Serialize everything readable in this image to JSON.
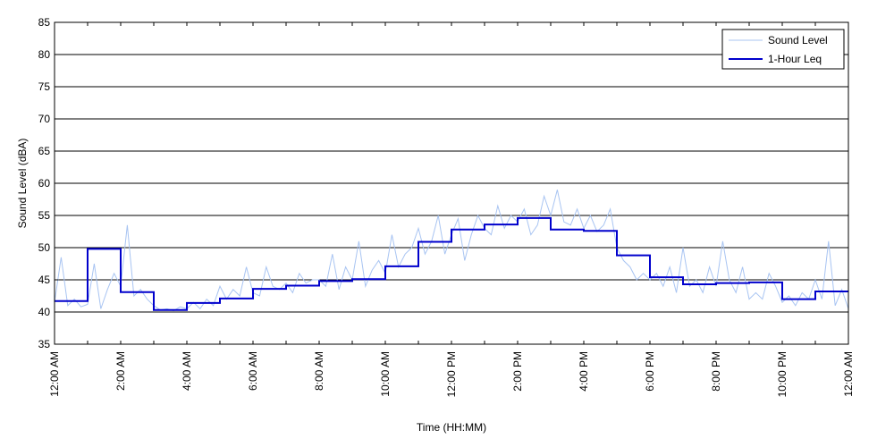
{
  "chart_data": {
    "type": "line",
    "title": "",
    "xlabel": "Time (HH:MM)",
    "ylabel": "Sound Level (dBA)",
    "xlim": [
      0,
      24
    ],
    "ylim": [
      35,
      85
    ],
    "grid": "horizontal",
    "legend_position": "top-right",
    "x_tick_labels": [
      "12:00 AM",
      "2:00 AM",
      "4:00 AM",
      "6:00 AM",
      "8:00 AM",
      "10:00 AM",
      "12:00 PM",
      "2:00 PM",
      "4:00 PM",
      "6:00 PM",
      "8:00 PM",
      "10:00 PM",
      "12:00 AM"
    ],
    "x_tick_hours": [
      0,
      2,
      4,
      6,
      8,
      10,
      12,
      14,
      16,
      18,
      20,
      22,
      24
    ],
    "y_ticks": [
      35,
      40,
      45,
      50,
      55,
      60,
      65,
      70,
      75,
      80,
      85
    ],
    "series": [
      {
        "name": "Sound Level",
        "color": "#a8c4f2",
        "style": "thin-line",
        "x": [
          0,
          0.2,
          0.4,
          0.6,
          0.8,
          1,
          1.2,
          1.4,
          1.6,
          1.8,
          2,
          2.2,
          2.4,
          2.6,
          2.8,
          3,
          3.2,
          3.4,
          3.6,
          3.8,
          4,
          4.2,
          4.4,
          4.6,
          4.8,
          5,
          5.2,
          5.4,
          5.6,
          5.8,
          6,
          6.2,
          6.4,
          6.6,
          6.8,
          7,
          7.2,
          7.4,
          7.6,
          7.8,
          8,
          8.2,
          8.4,
          8.6,
          8.8,
          9,
          9.2,
          9.4,
          9.6,
          9.8,
          10,
          10.2,
          10.4,
          10.6,
          10.8,
          11,
          11.2,
          11.4,
          11.6,
          11.8,
          12,
          12.2,
          12.4,
          12.6,
          12.8,
          13,
          13.2,
          13.4,
          13.6,
          13.8,
          14,
          14.2,
          14.4,
          14.6,
          14.8,
          15,
          15.2,
          15.4,
          15.6,
          15.8,
          16,
          16.2,
          16.4,
          16.6,
          16.8,
          17,
          17.2,
          17.4,
          17.6,
          17.8,
          18,
          18.2,
          18.4,
          18.6,
          18.8,
          19,
          19.2,
          19.4,
          19.6,
          19.8,
          20,
          20.2,
          20.4,
          20.6,
          20.8,
          21,
          21.2,
          21.4,
          21.6,
          21.8,
          22,
          22.2,
          22.4,
          22.6,
          22.8,
          23,
          23.2,
          23.4,
          23.6,
          23.8,
          24
        ],
        "values": [
          41.5,
          48.5,
          41,
          42,
          40.8,
          41.2,
          47.5,
          40.5,
          43.5,
          46,
          44,
          53.5,
          42.5,
          43.5,
          42,
          41,
          40.3,
          40.5,
          40.2,
          40.8,
          40.5,
          41.5,
          40.5,
          42,
          41,
          44,
          42,
          43.5,
          42.5,
          47,
          43,
          42.5,
          47,
          44,
          43.5,
          44.5,
          43,
          46,
          44.5,
          45,
          45,
          44,
          49,
          43.5,
          47,
          45,
          51,
          44,
          46.5,
          48,
          46,
          52,
          47,
          49,
          50,
          53,
          49,
          51,
          55,
          49,
          52,
          54.5,
          48,
          52,
          55,
          53,
          52,
          56.5,
          53,
          55,
          54,
          56,
          52,
          53.5,
          58,
          55,
          59,
          54,
          53.5,
          56,
          53,
          55,
          52.5,
          53.5,
          56,
          50,
          48,
          47,
          45,
          46,
          45,
          46,
          44,
          47,
          43,
          50,
          44,
          45,
          43,
          47,
          44,
          51,
          45,
          43,
          47,
          42,
          43,
          42,
          46,
          44,
          41.5,
          42.5,
          41,
          43,
          42,
          45,
          42,
          51,
          41,
          43.5,
          40.5
        ]
      },
      {
        "name": "1-Hour Leq",
        "color": "#0000cc",
        "style": "step",
        "x": [
          0,
          1,
          2,
          3,
          4,
          5,
          6,
          7,
          8,
          9,
          10,
          11,
          12,
          13,
          14,
          15,
          16,
          17,
          18,
          19,
          20,
          21,
          22,
          23,
          24
        ],
        "values": [
          41.7,
          49.8,
          43.1,
          40.3,
          41.4,
          42.1,
          43.6,
          44.1,
          44.8,
          45.1,
          47.1,
          50.9,
          52.8,
          53.6,
          54.6,
          52.8,
          52.6,
          48.8,
          45.4,
          44.3,
          44.5,
          44.6,
          42.0,
          43.2,
          43.2
        ]
      }
    ]
  }
}
